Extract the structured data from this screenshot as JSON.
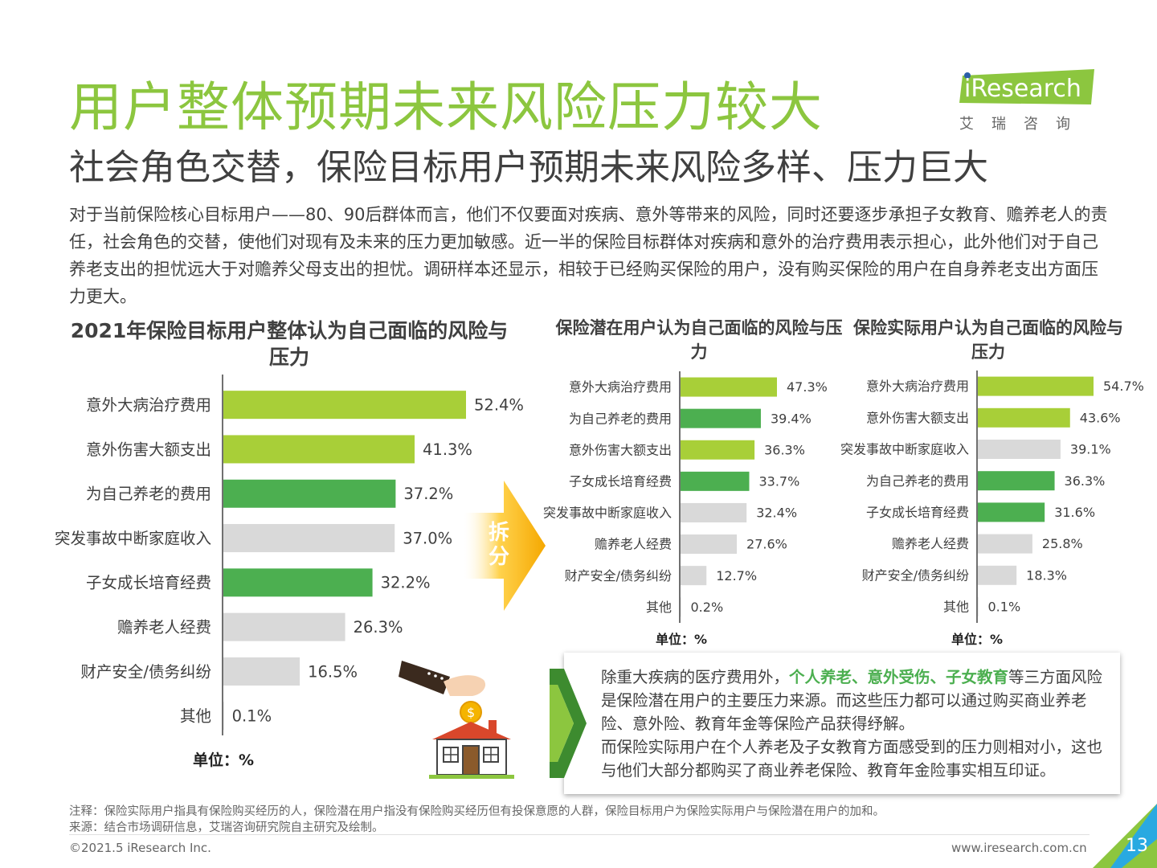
{
  "header": {
    "title": "用户整体预期未来风险压力较大",
    "subtitle": "社会角色交替，保险目标用户预期未来风险多样、压力巨大",
    "intro": "对于当前保险核心目标用户——80、90后群体而言，他们不仅要面对疾病、意外等带来的风险，同时还要逐步承担子女教育、赡养老人的责任，社会角色的交替，使他们对现有及未来的压力更加敏感。近一半的保险目标群体对疾病和意外的治疗费用表示担心，此外他们对于自己养老支出的担忧远大于对赡养父母支出的担忧。调研样本还显示，相较于已经购买保险的用户，没有购买保险的用户在自身养老支出方面压力更大。"
  },
  "logo": {
    "word": "iResearch",
    "sub": "艾瑞咨询"
  },
  "split_label": "拆分",
  "colors": {
    "light_green": "#a8cf38",
    "dark_green": "#4caf50",
    "gray": "#d9d9d9",
    "title_green": "#8cc63f"
  },
  "chart_data": [
    {
      "type": "bar",
      "orientation": "horizontal",
      "title": "2021年保险目标用户整体认为自己面临的风险与压力",
      "unit_label": "单位：%",
      "categories": [
        "意外大病治疗费用",
        "意外伤害大额支出",
        "为自己养老的费用",
        "突发事故中断家庭收入",
        "子女成长培育经费",
        "赡养老人经费",
        "财产安全/债务纠纷",
        "其他"
      ],
      "values": [
        52.4,
        41.3,
        37.2,
        37.0,
        32.2,
        26.3,
        16.5,
        0.1
      ],
      "labels": [
        "52.4%",
        "41.3%",
        "37.2%",
        "37.0%",
        "32.2%",
        "26.3%",
        "16.5%",
        "0.1%"
      ],
      "bar_colors": [
        "light_green",
        "light_green",
        "dark_green",
        "gray",
        "dark_green",
        "gray",
        "gray",
        "gray"
      ],
      "xlim": [
        0,
        60
      ]
    },
    {
      "type": "bar",
      "orientation": "horizontal",
      "title": "保险潜在用户认为自己面临的风险与压力",
      "unit_label": "单位：%",
      "categories": [
        "意外大病治疗费用",
        "为自己养老的费用",
        "意外伤害大额支出",
        "子女成长培育经费",
        "突发事故中断家庭收入",
        "赡养老人经费",
        "财产安全/债务纠纷",
        "其他"
      ],
      "values": [
        47.3,
        39.4,
        36.3,
        33.7,
        32.4,
        27.6,
        12.7,
        0.2
      ],
      "labels": [
        "47.3%",
        "39.4%",
        "36.3%",
        "33.7%",
        "32.4%",
        "27.6%",
        "12.7%",
        "0.2%"
      ],
      "bar_colors": [
        "light_green",
        "dark_green",
        "light_green",
        "dark_green",
        "gray",
        "gray",
        "gray",
        "gray"
      ],
      "xlim": [
        0,
        60
      ]
    },
    {
      "type": "bar",
      "orientation": "horizontal",
      "title": "保险实际用户认为自己面临的风险与压力",
      "unit_label": "单位：%",
      "categories": [
        "意外大病治疗费用",
        "意外伤害大额支出",
        "突发事故中断家庭收入",
        "为自己养老的费用",
        "子女成长培育经费",
        "赡养老人经费",
        "财产安全/债务纠纷",
        "其他"
      ],
      "values": [
        54.7,
        43.6,
        39.1,
        36.3,
        31.6,
        25.8,
        18.3,
        0.1
      ],
      "labels": [
        "54.7%",
        "43.6%",
        "39.1%",
        "36.3%",
        "31.6%",
        "25.8%",
        "18.3%",
        "0.1%"
      ],
      "bar_colors": [
        "light_green",
        "light_green",
        "gray",
        "dark_green",
        "dark_green",
        "gray",
        "gray",
        "gray"
      ],
      "xlim": [
        0,
        60
      ]
    }
  ],
  "callout": {
    "line1_pre": "除重大疾病的医疗费用外，",
    "line1_highlight": "个人养老、意外受伤、子女教育",
    "line1_post": "等三方面风险是保险潜在用户的主要压力来源。而这些压力都可以通过购买商业养老险、意外险、教育年金等保险产品获得纾解。",
    "line2": "而保险实际用户在个人养老及子女教育方面感受到的压力则相对小，这也与他们大部分都购买了商业养老保险、教育年金险事实相互印证。"
  },
  "footer": {
    "note": "注释：保险实际用户指具有保险购买经历的人，保险潜在用户指没有保险购买经历但有投保意愿的人群，保险目标用户为保险实际用户与保险潜在用户的加和。",
    "source": "来源：结合市场调研信息，艾瑞咨询研究院自主研究及绘制。",
    "copyright": "©2021.5 iResearch Inc.",
    "website": "www.iresearch.com.cn",
    "page": "13"
  }
}
